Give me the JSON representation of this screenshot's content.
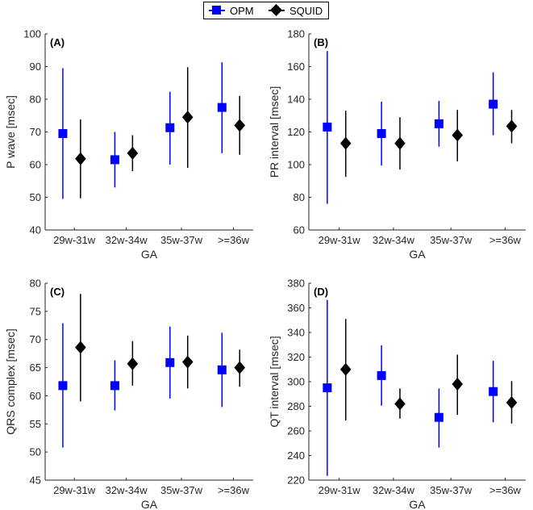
{
  "legend": {
    "opm": "OPM",
    "squid": "SQUID"
  },
  "colors": {
    "opm": "#0000ff",
    "squid": "#000000",
    "axis": "#262626"
  },
  "chart_data": [
    {
      "type": "scatter",
      "panel": "(A)",
      "xlabel": "GA",
      "ylabel": "P wave [msec]",
      "categories": [
        "29w-31w",
        "32w-34w",
        "35w-37w",
        ">=36w"
      ],
      "ylim": [
        40,
        100
      ],
      "yticks": [
        40,
        50,
        60,
        70,
        80,
        90,
        100
      ],
      "series": [
        {
          "name": "OPM",
          "marker": "square",
          "values": [
            69.5,
            61.5,
            71.3,
            77.5
          ],
          "lower": [
            49.5,
            53,
            60,
            63.5
          ],
          "upper": [
            89.5,
            70,
            82.3,
            91.3
          ]
        },
        {
          "name": "SQUID",
          "marker": "diamond",
          "values": [
            61.8,
            63.5,
            74.5,
            72
          ],
          "lower": [
            49.7,
            58,
            59,
            63
          ],
          "upper": [
            73.8,
            69,
            89.8,
            81
          ]
        }
      ]
    },
    {
      "type": "scatter",
      "panel": "(B)",
      "xlabel": "GA",
      "ylabel": "PR interval [msec]",
      "categories": [
        "29w-31w",
        "32w-34w",
        "35w-37w",
        ">=36w"
      ],
      "ylim": [
        60,
        180
      ],
      "yticks": [
        60,
        80,
        100,
        120,
        140,
        160,
        180
      ],
      "series": [
        {
          "name": "OPM",
          "marker": "square",
          "values": [
            123,
            119,
            125,
            137
          ],
          "lower": [
            76,
            99.5,
            111,
            118
          ],
          "upper": [
            169.5,
            138.5,
            139,
            156.5
          ]
        },
        {
          "name": "SQUID",
          "marker": "diamond",
          "values": [
            113,
            113,
            118,
            123.5
          ],
          "lower": [
            92.5,
            97,
            102,
            113
          ],
          "upper": [
            133,
            129,
            133.5,
            133.5
          ]
        }
      ]
    },
    {
      "type": "scatter",
      "panel": "(C)",
      "xlabel": "GA",
      "ylabel": "QRS complex [msec]",
      "categories": [
        "29w-31w",
        "32w-34w",
        "35w-37w",
        ">=36w"
      ],
      "ylim": [
        45,
        80
      ],
      "yticks": [
        45,
        50,
        55,
        60,
        65,
        70,
        75,
        80
      ],
      "series": [
        {
          "name": "OPM",
          "marker": "square",
          "values": [
            61.8,
            61.8,
            65.9,
            64.6
          ],
          "lower": [
            50.8,
            57.4,
            59.5,
            58
          ],
          "upper": [
            72.9,
            66.3,
            72.3,
            71.2
          ]
        },
        {
          "name": "SQUID",
          "marker": "diamond",
          "values": [
            68.6,
            65.7,
            66,
            65
          ],
          "lower": [
            59,
            61.8,
            61.3,
            61.6
          ],
          "upper": [
            78.1,
            69.7,
            70.7,
            68.2
          ]
        }
      ]
    },
    {
      "type": "scatter",
      "panel": "(D)",
      "xlabel": "GA",
      "ylabel": "QT interval [msec]",
      "categories": [
        "29w-31w",
        "32w-34w",
        "35w-37w",
        ">=36w"
      ],
      "ylim": [
        220,
        380
      ],
      "yticks": [
        220,
        240,
        260,
        280,
        300,
        320,
        340,
        360,
        380
      ],
      "series": [
        {
          "name": "OPM",
          "marker": "square",
          "values": [
            295,
            305,
            271,
            292
          ],
          "lower": [
            223.5,
            280.5,
            246.5,
            267
          ],
          "upper": [
            366.5,
            329.5,
            294.5,
            317
          ]
        },
        {
          "name": "SQUID",
          "marker": "diamond",
          "values": [
            310,
            282,
            298,
            283
          ],
          "lower": [
            268.5,
            270,
            273,
            266
          ],
          "upper": [
            351,
            294.5,
            322,
            300.5
          ]
        }
      ]
    }
  ]
}
